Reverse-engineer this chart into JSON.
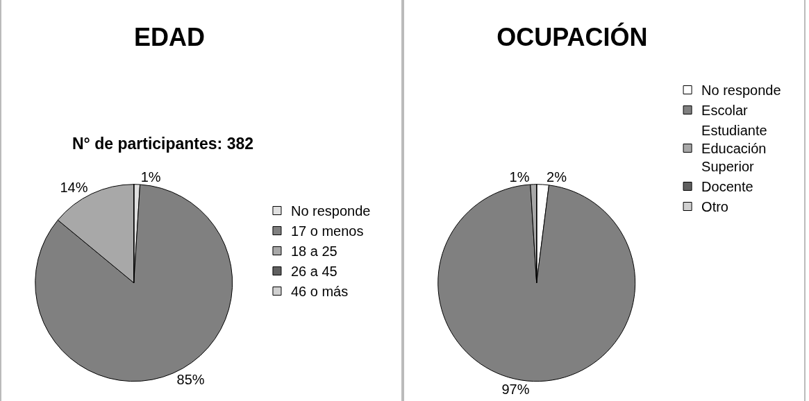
{
  "chart_data": [
    {
      "type": "pie",
      "title": "EDAD",
      "subtitle": "N° de participantes: 382",
      "categories": [
        "No responde",
        "17 o menos",
        "18 a 25",
        "26 a 45",
        "46 o más"
      ],
      "values": [
        1,
        85,
        14,
        0,
        0
      ],
      "value_labels": [
        "1%",
        "85%",
        "14%",
        null,
        null
      ],
      "colors": [
        "#e0e0e0",
        "#808080",
        "#a8a8a8",
        "#606060",
        "#d0d0d0"
      ],
      "legend": "right"
    },
    {
      "type": "pie",
      "title": "OCUPACIÓN",
      "categories": [
        "No responde",
        "Escolar",
        "Estudiante Educación Superior",
        "Docente",
        "Otro"
      ],
      "values": [
        2,
        97,
        1,
        0,
        0
      ],
      "value_labels": [
        "2%",
        "97%",
        "1%",
        null,
        null
      ],
      "colors": [
        "#ffffff",
        "#808080",
        "#a8a8a8",
        "#606060",
        "#d0d0d0"
      ],
      "legend": "right"
    }
  ]
}
